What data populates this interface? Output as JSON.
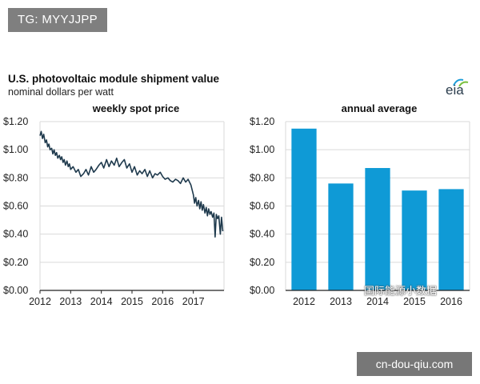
{
  "corner_tag": "TG: MYYJJPP",
  "watermark": "cn-dou-qiu.com",
  "wechat_overlay": "国际能源小数据",
  "logo": {
    "text": "eia",
    "icon": "eia-logo-icon"
  },
  "colors": {
    "line": "#1f3a4d",
    "bar": "#0f9ad6",
    "grid": "#d9d9d9",
    "axis": "#222222"
  },
  "chart_data": [
    {
      "type": "line",
      "title": "U.S. photovoltaic module shipment value",
      "subtitle": "nominal dollars per watt",
      "panel_title": "weekly spot price",
      "ylim": [
        0,
        1.2
      ],
      "y_ticks": [
        "$0.00",
        "$0.20",
        "$0.40",
        "$0.60",
        "$0.80",
        "$1.00",
        "$1.20"
      ],
      "x_ticks": [
        "2012",
        "2013",
        "2014",
        "2015",
        "2016",
        "2017"
      ],
      "xlim": [
        2012,
        2018
      ],
      "series": [
        {
          "name": "weekly spot price",
          "x": [
            2012.0,
            2012.04,
            2012.08,
            2012.12,
            2012.17,
            2012.21,
            2012.25,
            2012.29,
            2012.33,
            2012.38,
            2012.42,
            2012.46,
            2012.5,
            2012.54,
            2012.58,
            2012.63,
            2012.67,
            2012.71,
            2012.75,
            2012.79,
            2012.83,
            2012.88,
            2012.92,
            2012.96,
            2013.0,
            2013.08,
            2013.17,
            2013.25,
            2013.33,
            2013.42,
            2013.5,
            2013.58,
            2013.67,
            2013.75,
            2013.83,
            2013.92,
            2014.0,
            2014.08,
            2014.17,
            2014.25,
            2014.33,
            2014.42,
            2014.5,
            2014.58,
            2014.67,
            2014.75,
            2014.83,
            2014.92,
            2015.0,
            2015.08,
            2015.17,
            2015.25,
            2015.33,
            2015.42,
            2015.5,
            2015.58,
            2015.67,
            2015.75,
            2015.83,
            2015.92,
            2016.0,
            2016.08,
            2016.17,
            2016.25,
            2016.33,
            2016.42,
            2016.5,
            2016.58,
            2016.67,
            2016.75,
            2016.83,
            2016.92,
            2017.0,
            2017.04,
            2017.08,
            2017.12,
            2017.17,
            2017.21,
            2017.25,
            2017.29,
            2017.33,
            2017.38,
            2017.42,
            2017.46,
            2017.5,
            2017.54,
            2017.58,
            2017.63,
            2017.67,
            2017.71,
            2017.75,
            2017.79,
            2017.83,
            2017.88,
            2017.92,
            2017.96
          ],
          "values": [
            1.1,
            1.13,
            1.08,
            1.11,
            1.05,
            1.07,
            1.02,
            1.04,
            1.0,
            1.01,
            0.97,
            1.0,
            0.96,
            0.98,
            0.94,
            0.96,
            0.93,
            0.95,
            0.91,
            0.93,
            0.89,
            0.92,
            0.88,
            0.9,
            0.86,
            0.88,
            0.84,
            0.86,
            0.81,
            0.83,
            0.86,
            0.82,
            0.88,
            0.84,
            0.86,
            0.89,
            0.91,
            0.87,
            0.93,
            0.88,
            0.92,
            0.89,
            0.94,
            0.88,
            0.91,
            0.93,
            0.87,
            0.9,
            0.84,
            0.88,
            0.82,
            0.85,
            0.83,
            0.86,
            0.81,
            0.85,
            0.8,
            0.83,
            0.82,
            0.84,
            0.81,
            0.79,
            0.8,
            0.78,
            0.77,
            0.79,
            0.78,
            0.76,
            0.8,
            0.77,
            0.79,
            0.75,
            0.68,
            0.62,
            0.66,
            0.6,
            0.64,
            0.58,
            0.63,
            0.57,
            0.61,
            0.55,
            0.59,
            0.53,
            0.58,
            0.54,
            0.56,
            0.52,
            0.55,
            0.38,
            0.54,
            0.51,
            0.53,
            0.4,
            0.52,
            0.42
          ]
        }
      ]
    },
    {
      "type": "bar",
      "panel_title": "annual average",
      "ylim": [
        0,
        1.2
      ],
      "y_ticks": [
        "$0.00",
        "$0.20",
        "$0.40",
        "$0.60",
        "$0.80",
        "$1.00",
        "$1.20"
      ],
      "categories": [
        "2012",
        "2013",
        "2014",
        "2015",
        "2016"
      ],
      "values": [
        1.15,
        0.76,
        0.87,
        0.71,
        0.72
      ]
    }
  ]
}
